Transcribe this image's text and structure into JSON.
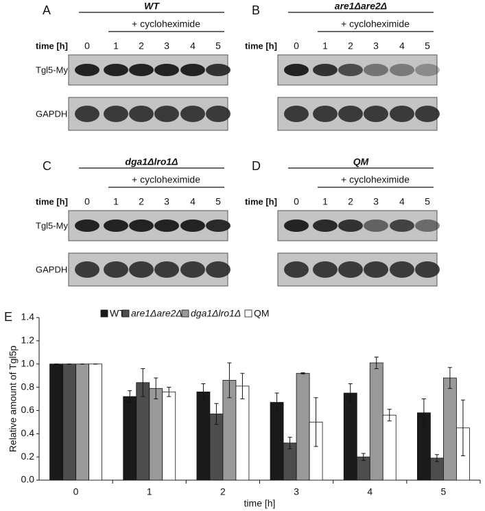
{
  "panels": [
    {
      "label": "A",
      "title": "WT",
      "treatment": "+ cycloheximide",
      "time_label": "time [h]",
      "lanes": [
        "0",
        "1",
        "2",
        "3",
        "4",
        "5"
      ],
      "rows": [
        "Tgl5-Myc",
        "GAPDH"
      ]
    },
    {
      "label": "B",
      "title": "are1Δare2Δ",
      "treatment": "+ cycloheximide",
      "time_label": "time [h]",
      "lanes": [
        "0",
        "1",
        "2",
        "3",
        "4",
        "5"
      ]
    },
    {
      "label": "C",
      "title": "dga1Δlro1Δ",
      "treatment": "+ cycloheximide",
      "time_label": "time [h]",
      "lanes": [
        "0",
        "1",
        "2",
        "3",
        "4",
        "5"
      ],
      "rows": [
        "Tgl5-Myc",
        "GAPDH"
      ]
    },
    {
      "label": "D",
      "title": "QM",
      "treatment": "+ cycloheximide",
      "time_label": "time [h]",
      "lanes": [
        "0",
        "1",
        "2",
        "3",
        "4",
        "5"
      ]
    }
  ],
  "chart_data": {
    "type": "bar",
    "panel_label": "E",
    "x_label": "time [h]",
    "y_label": "Relative amount of Tgl5p",
    "categories": [
      "0",
      "1",
      "2",
      "3",
      "4",
      "5"
    ],
    "series": [
      {
        "name": "WT",
        "color": "#1a1a1a",
        "values": [
          1.0,
          0.72,
          0.76,
          0.67,
          0.75,
          0.58
        ],
        "errors": [
          0,
          0.05,
          0.07,
          0.08,
          0.08,
          0.12
        ]
      },
      {
        "name": "are1Δare2Δ",
        "color": "#4d4d4d",
        "values": [
          1.0,
          0.84,
          0.57,
          0.32,
          0.2,
          0.19
        ],
        "errors": [
          0,
          0.12,
          0.09,
          0.05,
          0.03,
          0.03
        ]
      },
      {
        "name": "dga1Δlro1Δ",
        "color": "#999999",
        "values": [
          1.0,
          0.79,
          0.86,
          0.92,
          1.01,
          0.88
        ],
        "errors": [
          0,
          0.09,
          0.15,
          0.005,
          0.05,
          0.09
        ]
      },
      {
        "name": "QM",
        "color": "#ffffff",
        "values": [
          1.0,
          0.76,
          0.81,
          0.5,
          0.56,
          0.45
        ],
        "errors": [
          0,
          0.04,
          0.11,
          0.21,
          0.05,
          0.24
        ]
      }
    ],
    "ylim": [
      0,
      1.4
    ],
    "yticks": [
      {
        "value": 0,
        "label": "0.0"
      },
      0.2,
      0.4,
      0.6,
      0.8,
      {
        "value": 1,
        "label": "1.0"
      },
      1.2,
      1.4
    ]
  }
}
